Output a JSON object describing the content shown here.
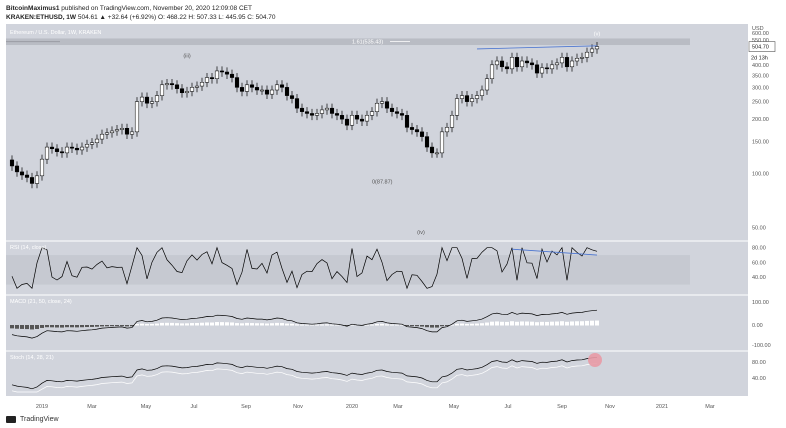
{
  "header": {
    "author": "BitcoinMaximus1",
    "published": "published on TradingView.com, November 20, 2020 12:09:08 CET",
    "symbol": "KRAKEN:ETHUSD, 1W",
    "ohlc": "504.61 ▲ +32.64 (+6.92%) O: 468.22 H: 507.33 L: 445.95 C: 504.70"
  },
  "footer": {
    "brand": "TradingView"
  },
  "colors": {
    "bg": "#d1d4dc",
    "up": "#ffffff",
    "down": "#000000",
    "trend": "#4a74d0",
    "marker": "#e89aa5"
  },
  "chart_data": {
    "type": "candlestick",
    "title": "Ethereum / U.S. Dollar, 1W, KRAKEN",
    "price_unit": "USD",
    "price_scale": "log",
    "y_ticks": [
      600,
      550,
      500,
      450,
      400,
      350,
      300,
      250,
      200,
      150,
      100,
      50
    ],
    "x_ticks": [
      "2019",
      "Mar",
      "May",
      "Jul",
      "Sep",
      "Nov",
      "2020",
      "Mar",
      "May",
      "Jul",
      "Sep",
      "Nov",
      "2021",
      "Mar"
    ],
    "last_price": "504.70",
    "countdown": "2d 13h",
    "fib_label": "1.61(535.43)",
    "wave_labels": [
      "(iii)",
      "(iv)",
      "(v)"
    ],
    "extreme_label": "0(87.87)",
    "closes": [
      110,
      102,
      98,
      95,
      88,
      97,
      120,
      140,
      137,
      132,
      130,
      140,
      138,
      135,
      140,
      145,
      148,
      155,
      165,
      168,
      172,
      175,
      178,
      165,
      170,
      250,
      265,
      245,
      250,
      270,
      310,
      315,
      310,
      295,
      280,
      285,
      300,
      305,
      320,
      340,
      335,
      370,
      365,
      355,
      340,
      300,
      285,
      310,
      300,
      290,
      290,
      275,
      290,
      310,
      300,
      270,
      260,
      230,
      220,
      215,
      210,
      215,
      225,
      230,
      215,
      210,
      200,
      185,
      210,
      200,
      195,
      210,
      220,
      245,
      250,
      230,
      220,
      215,
      210,
      180,
      175,
      170,
      160,
      140,
      130,
      130,
      170,
      180,
      210,
      260,
      270,
      250,
      260,
      270,
      290,
      335,
      400,
      420,
      390,
      380,
      440,
      390,
      420,
      410,
      400,
      360,
      385,
      380,
      400,
      410,
      440,
      390,
      420,
      435,
      440,
      470,
      490,
      504.7
    ],
    "rsi": {
      "label": "RSI (14, close)",
      "ticks": [
        80,
        60,
        40
      ]
    },
    "macd": {
      "label": "MACD (21, 50, close, 24)",
      "ticks": [
        "100.00",
        "0.00",
        "-100.00"
      ]
    },
    "stoch": {
      "label": "Stoch (14, 28, 21)",
      "ticks": [
        "80.00",
        "40.00"
      ]
    }
  }
}
